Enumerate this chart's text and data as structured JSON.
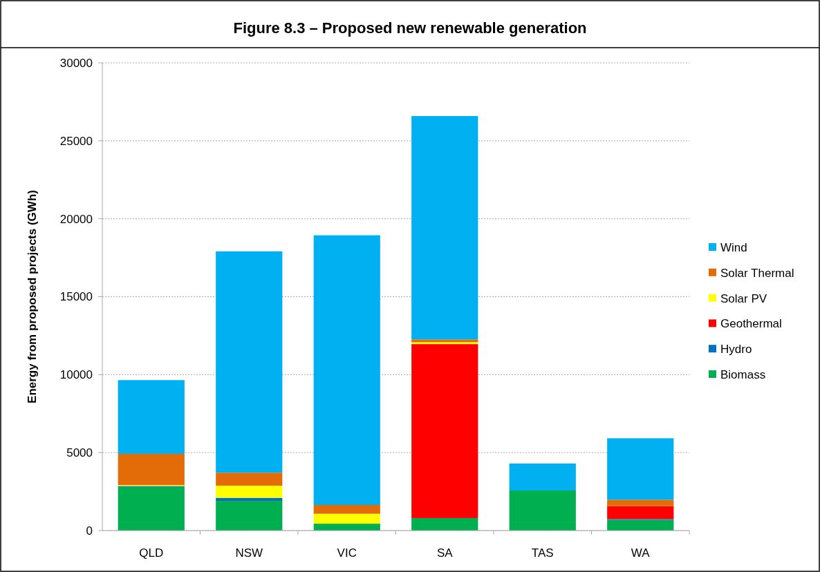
{
  "chart_data": {
    "type": "bar",
    "title": "Figure 8.3 – Proposed new renewable generation",
    "ylabel": "Energy from proposed projects (GWh)",
    "categories": [
      "QLD",
      "NSW",
      "VIC",
      "SA",
      "TAS",
      "WA"
    ],
    "stacked": true,
    "ylim": [
      0,
      30000
    ],
    "yticks": [
      0,
      5000,
      10000,
      15000,
      20000,
      25000,
      30000
    ],
    "grid": "y",
    "legend": "right",
    "series": [
      {
        "name": "Biomass",
        "color": "#00b050",
        "values": [
          2800,
          1900,
          440,
          800,
          2570,
          680
        ]
      },
      {
        "name": "Hydro",
        "color": "#0070c0",
        "values": [
          60,
          200,
          0,
          0,
          0,
          60
        ]
      },
      {
        "name": "Geothermal",
        "color": "#ff0000",
        "values": [
          0,
          0,
          0,
          11160,
          0,
          820
        ]
      },
      {
        "name": "Solar PV",
        "color": "#ffff00",
        "values": [
          60,
          780,
          640,
          120,
          0,
          0
        ]
      },
      {
        "name": "Solar Thermal",
        "color": "#e36c09",
        "values": [
          2000,
          830,
          560,
          180,
          0,
          420
        ]
      },
      {
        "name": "Wind",
        "color": "#00b0f0",
        "values": [
          4730,
          14200,
          17300,
          14330,
          1730,
          3940
        ]
      }
    ]
  }
}
